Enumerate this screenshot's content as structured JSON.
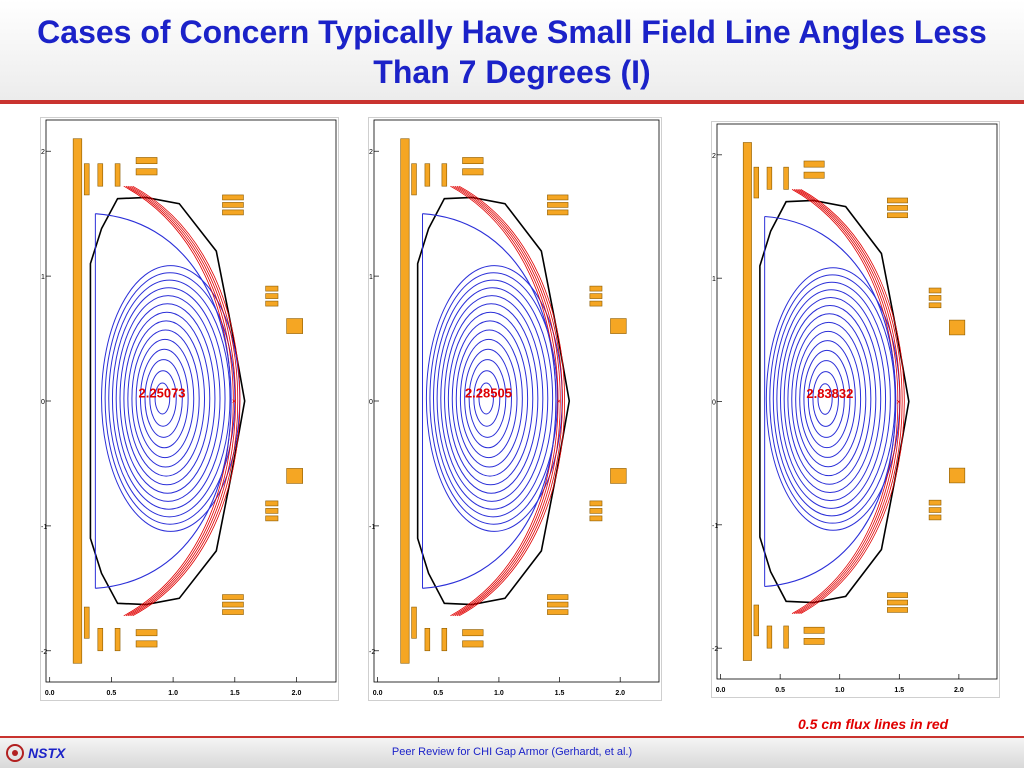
{
  "title": "Cases of Concern Typically Have Small Field Line Angles Less Than 7 Degrees (I)",
  "caption": "0.5 cm flux lines in red",
  "footer": {
    "logo_text": "NSTX",
    "text": "Peer Review for CHI Gap Armor (Gerhardt, et al.)"
  },
  "colors": {
    "title": "#1b22c8",
    "accent_rule": "#c9332f",
    "coil": "#f5a623",
    "flux_blue": "#2b2fd8",
    "flux_red": "#e00000",
    "wall": "#000000"
  },
  "plots": [
    {
      "label": "2.25073",
      "x_ticks": [
        "0.0",
        "0.5",
        "1.0",
        "1.5",
        "2.0"
      ],
      "y_ticks": [
        "2",
        "1",
        "0",
        "-1",
        "-2"
      ]
    },
    {
      "label": "2.28505",
      "x_ticks": [
        "0.0",
        "0.5",
        "1.0",
        "1.5",
        "2.0"
      ],
      "y_ticks": [
        "2",
        "1",
        "0",
        "-1",
        "-2"
      ]
    },
    {
      "label": "2.83832",
      "x_ticks": [
        "0.0",
        "0.5",
        "1.0",
        "1.5",
        "2.0"
      ],
      "y_ticks": [
        "2",
        "1",
        "0",
        "-1",
        "-2"
      ]
    }
  ]
}
